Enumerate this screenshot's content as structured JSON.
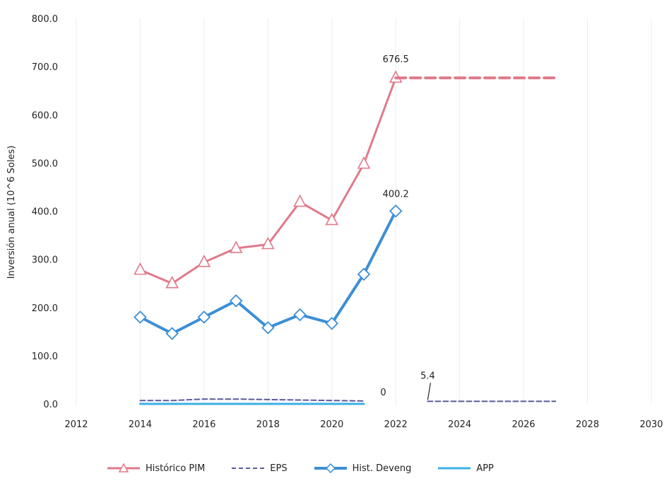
{
  "chart_data": {
    "type": "line",
    "title": "",
    "xlabel": "",
    "ylabel": "Inversión anual (10^6 Soles)",
    "xlim": [
      2012,
      2030
    ],
    "ylim": [
      0,
      800
    ],
    "x_ticks": [
      "2012",
      "2014",
      "2016",
      "2018",
      "2020",
      "2022",
      "2024",
      "2026",
      "2028",
      "2030"
    ],
    "y_ticks": [
      "0.0",
      "100.0",
      "200.0",
      "300.0",
      "400.0",
      "500.0",
      "600.0",
      "700.0",
      "800.0"
    ],
    "grid": "vertical",
    "legend_position": "bottom",
    "series": [
      {
        "name": "Histórico PIM",
        "color": "#e07a8a",
        "style": "solid",
        "marker": "triangle",
        "x": [
          2014,
          2015,
          2016,
          2017,
          2018,
          2019,
          2020,
          2021,
          2022
        ],
        "y": [
          278,
          250,
          294,
          323,
          331,
          419,
          381,
          498,
          676.5
        ]
      },
      {
        "name": "Histórico PIM (proyección)",
        "color": "#e07a8a",
        "style": "dashed",
        "marker": "none",
        "x": [
          2022,
          2027
        ],
        "y": [
          676.5,
          676.5
        ]
      },
      {
        "name": "EPS",
        "color": "#5a5a9e",
        "style": "dashed",
        "marker": "none",
        "x": [
          2014,
          2015,
          2016,
          2017,
          2018,
          2019,
          2020,
          2021
        ],
        "y": [
          7,
          7,
          10,
          10,
          9,
          8,
          7,
          6
        ]
      },
      {
        "name": "EPS (proyección)",
        "color": "#5a5a9e",
        "style": "dashed",
        "marker": "none",
        "x": [
          2023,
          2027
        ],
        "y": [
          5.4,
          5.4
        ]
      },
      {
        "name": "Hist. Deveng",
        "color": "#3b8fd6",
        "style": "solid",
        "marker": "diamond",
        "x": [
          2014,
          2015,
          2016,
          2017,
          2018,
          2019,
          2020,
          2021,
          2022
        ],
        "y": [
          180,
          146,
          180,
          214,
          158,
          185,
          167,
          269,
          400.2
        ]
      },
      {
        "name": "APP",
        "color": "#3bb0e6",
        "style": "solid",
        "marker": "none",
        "x": [
          2014,
          2021
        ],
        "y": [
          0,
          0
        ]
      }
    ],
    "annotations": [
      {
        "text": "676.5",
        "x": 2022,
        "y": 676.5
      },
      {
        "text": "400.2",
        "x": 2022,
        "y": 400.2
      },
      {
        "text": "0",
        "x": 2021.3,
        "y": 0
      },
      {
        "text": "5.4",
        "x": 2023,
        "y": 5.4
      }
    ],
    "legend": [
      {
        "label": "Histórico PIM",
        "color": "#e07a8a",
        "style": "solid",
        "marker": "triangle"
      },
      {
        "label": "EPS",
        "color": "#5a5a9e",
        "style": "dashed",
        "marker": "none"
      },
      {
        "label": "Hist. Deveng",
        "color": "#3b8fd6",
        "style": "solid",
        "marker": "diamond"
      },
      {
        "label": "APP",
        "color": "#3bb0e6",
        "style": "solid",
        "marker": "none"
      }
    ]
  }
}
